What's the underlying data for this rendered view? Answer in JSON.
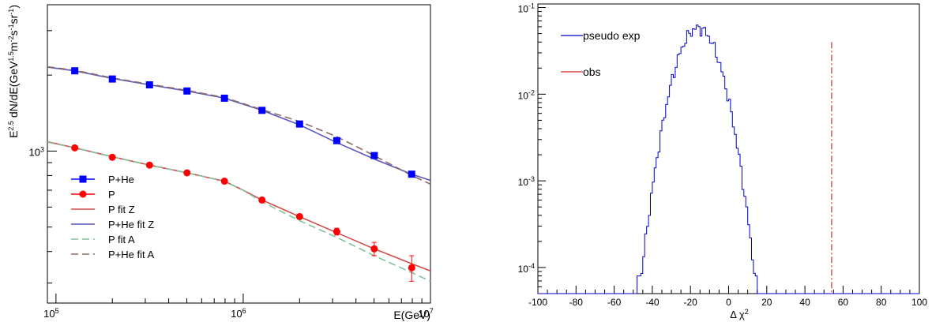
{
  "chart_data": [
    {
      "type": "line",
      "xlabel": "E(GeV)",
      "ylabel": "E^{2.5} dN/dE(GeV^{1.5}m^{-2}s^{-1}sr^{-1})",
      "ylabel_parts": {
        "a": "E",
        "sup1": "2.5",
        "b": " dN/dE(GeV",
        "sup2": "1.5",
        "c": "m",
        "sup3": "-2",
        "d": "s",
        "sup4": "-1",
        "e": "sr",
        "sup5": "-1",
        "f": ")"
      },
      "x_log": true,
      "y_log": true,
      "xlim": [
        90000,
        10000000
      ],
      "ylim": [
        250,
        3800
      ],
      "x_ticks": [
        {
          "value": 100000,
          "base": "10",
          "exp": "5"
        },
        {
          "value": 1000000,
          "base": "10",
          "exp": "6"
        },
        {
          "value": 10000000,
          "base": "10",
          "exp": "7"
        }
      ],
      "y_ticks": [
        {
          "value": 1000,
          "base": "10",
          "exp": "3"
        }
      ],
      "legend_position": "lower-left",
      "legend": [
        {
          "label": "P+He",
          "color": "#0000ff",
          "style": "square-marker"
        },
        {
          "label": "P",
          "color": "#ff0000",
          "style": "circle-marker"
        },
        {
          "label": "P fit Z",
          "color": "#d34b4b",
          "style": "solid"
        },
        {
          "label": "P+He fit Z",
          "color": "#5a56c0",
          "style": "solid"
        },
        {
          "label": "P fit A",
          "color": "#7fc39a",
          "style": "dashed"
        },
        {
          "label": "P+He fit A",
          "color": "#8b6c63",
          "style": "dashed"
        }
      ],
      "points": [
        {
          "series": "P+He",
          "x": [
            126000,
            200000,
            316000,
            501000,
            794000,
            1260000,
            2000000,
            3160000,
            5010000,
            7940000
          ],
          "y": [
            2080,
            1930,
            1830,
            1730,
            1620,
            1450,
            1280,
            1100,
            960,
            810
          ],
          "yerr": [
            15,
            15,
            15,
            15,
            15,
            15,
            15,
            15,
            20,
            20
          ]
        },
        {
          "series": "P",
          "x": [
            126000,
            200000,
            316000,
            501000,
            794000,
            1260000,
            2000000,
            3160000,
            5010000,
            7940000
          ],
          "y": [
            1030,
            945,
            880,
            820,
            760,
            640,
            550,
            480,
            410,
            345
          ],
          "yerr": [
            10,
            10,
            10,
            10,
            10,
            10,
            12,
            15,
            25,
            40
          ]
        }
      ],
      "lines": [
        {
          "series": "P fit Z",
          "x": [
            90000,
            126000,
            200000,
            316000,
            501000,
            794000,
            1000000,
            1260000,
            2000000,
            3160000,
            5010000,
            7940000,
            10000000
          ],
          "y": [
            1090,
            1030,
            950,
            880,
            820,
            760,
            700,
            640,
            550,
            475,
            410,
            358,
            335
          ]
        },
        {
          "series": "P+He fit Z",
          "x": [
            90000,
            126000,
            200000,
            316000,
            501000,
            794000,
            1260000,
            2000000,
            3160000,
            5010000,
            7940000,
            10000000
          ],
          "y": [
            2150,
            2080,
            1940,
            1830,
            1730,
            1620,
            1450,
            1270,
            1080,
            930,
            810,
            765
          ]
        },
        {
          "series": "P fit A",
          "x": [
            90000,
            126000,
            200000,
            316000,
            501000,
            794000,
            1000000,
            1260000,
            2000000,
            3160000,
            5010000,
            7940000,
            10000000
          ],
          "y": [
            1085,
            1030,
            950,
            880,
            820,
            760,
            700,
            630,
            530,
            455,
            385,
            330,
            305
          ]
        },
        {
          "series": "P+He fit A",
          "x": [
            90000,
            126000,
            200000,
            316000,
            501000,
            794000,
            1260000,
            2000000,
            3160000,
            5010000,
            7940000,
            10000000
          ],
          "y": [
            2160,
            2090,
            1950,
            1840,
            1740,
            1630,
            1460,
            1310,
            1140,
            960,
            800,
            740
          ]
        }
      ]
    },
    {
      "type": "histogram",
      "xlabel": "Δ χ²",
      "xlabel_parts": {
        "a": "Δ χ",
        "sup": "2"
      },
      "x_log": false,
      "y_log": true,
      "xlim": [
        -100,
        100
      ],
      "ylim": [
        5e-05,
        0.11
      ],
      "x_ticks": [
        -100,
        -80,
        -60,
        -40,
        -20,
        0,
        20,
        40,
        60,
        80,
        100
      ],
      "y_ticks": [
        {
          "value": 0.1,
          "base": "10",
          "exp": "-1"
        },
        {
          "value": 0.01,
          "base": "10",
          "exp": "-2"
        },
        {
          "value": 0.001,
          "base": "10",
          "exp": "-3"
        },
        {
          "value": 0.0001,
          "base": "10",
          "exp": "-4"
        }
      ],
      "legend_position": "top-left",
      "legend": [
        {
          "label": "pseudo exp",
          "color": "#0000cc",
          "style": "solid"
        },
        {
          "label": "obs",
          "color": "#d32f2f",
          "style": "solid"
        }
      ],
      "histogram": {
        "series": "pseudo exp",
        "color": "#0000cc",
        "mean": -16,
        "sigma": 8.2,
        "peak": 0.058,
        "range": [
          -48,
          15
        ],
        "bin_width": 1,
        "floor": 5e-05
      },
      "obs_line": {
        "series": "obs",
        "x": 54,
        "color": "#d32f2f",
        "style": "dash-dot"
      }
    }
  ]
}
